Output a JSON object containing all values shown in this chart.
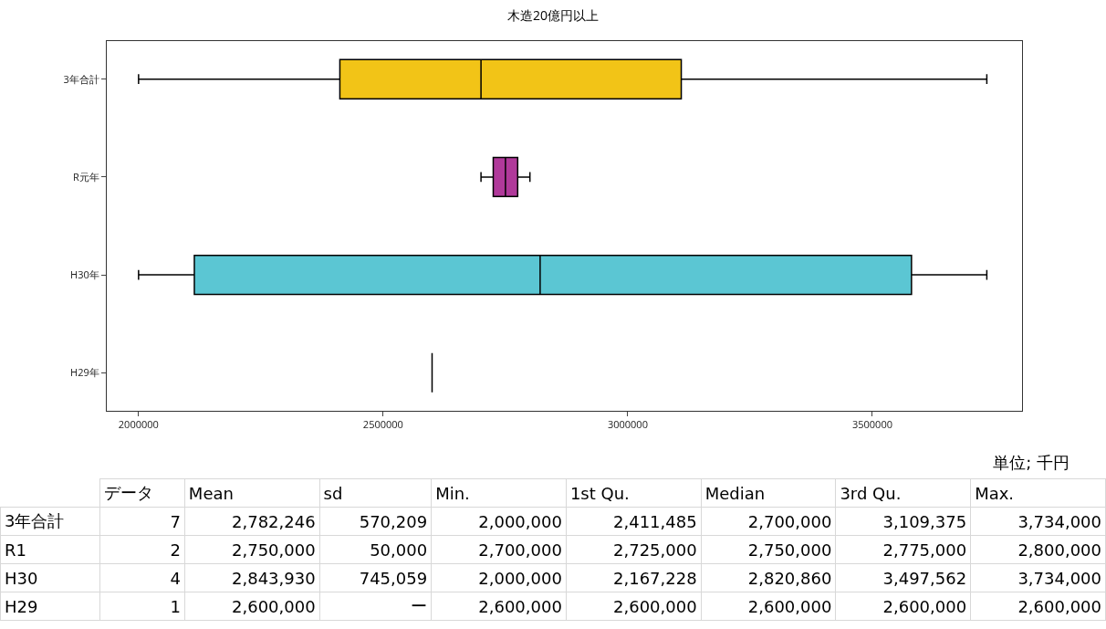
{
  "chart_data": [
    {
      "type": "box",
      "title": "木造20億円以上",
      "orientation": "horizontal",
      "categories": [
        "3年合計",
        "R元年",
        "H30年",
        "H29年"
      ],
      "boxes": [
        {
          "low": 2000000,
          "q1": 2411485,
          "median": 2700000,
          "q3": 3109375,
          "high": 3734000
        },
        {
          "low": 2700000,
          "q1": 2725000,
          "median": 2750000,
          "q3": 2775000,
          "high": 2800000
        },
        {
          "low": 2000000,
          "q1": 2114000,
          "median": 2820860,
          "q3": 3580000,
          "high": 3734000
        },
        {
          "low": 2600000,
          "q1": 2600000,
          "median": 2600000,
          "q3": 2600000,
          "high": 2600000
        }
      ],
      "colors": [
        "#f2c417",
        "#b0399a",
        "#5bc6d3",
        "#000000"
      ],
      "xlim": [
        1935000,
        3806000
      ],
      "xticks": [
        2000000,
        2500000,
        3000000,
        3500000
      ],
      "grid": false,
      "legend": false
    },
    {
      "type": "other",
      "annotations": [
        "単位; 千円"
      ],
      "categories": [
        "データ",
        "Mean",
        "sd",
        "Min.",
        "1st Qu.",
        "Median",
        "3rd Qu.",
        "Max."
      ],
      "y_categories": [
        "3年合計",
        "R1",
        "H30",
        "H29"
      ],
      "cell_labels": [
        [
          "7",
          "2,782,246",
          "570,209",
          "2,000,000",
          "2,411,485",
          "2,700,000",
          "3,109,375",
          "3,734,000"
        ],
        [
          "2",
          "2,750,000",
          "50,000",
          "2,700,000",
          "2,725,000",
          "2,750,000",
          "2,775,000",
          "2,800,000"
        ],
        [
          "4",
          "2,843,930",
          "745,059",
          "2,000,000",
          "2,167,228",
          "2,820,860",
          "3,497,562",
          "3,734,000"
        ],
        [
          "1",
          "2,600,000",
          "ー",
          "2,600,000",
          "2,600,000",
          "2,600,000",
          "2,600,000",
          "2,600,000"
        ]
      ]
    }
  ]
}
